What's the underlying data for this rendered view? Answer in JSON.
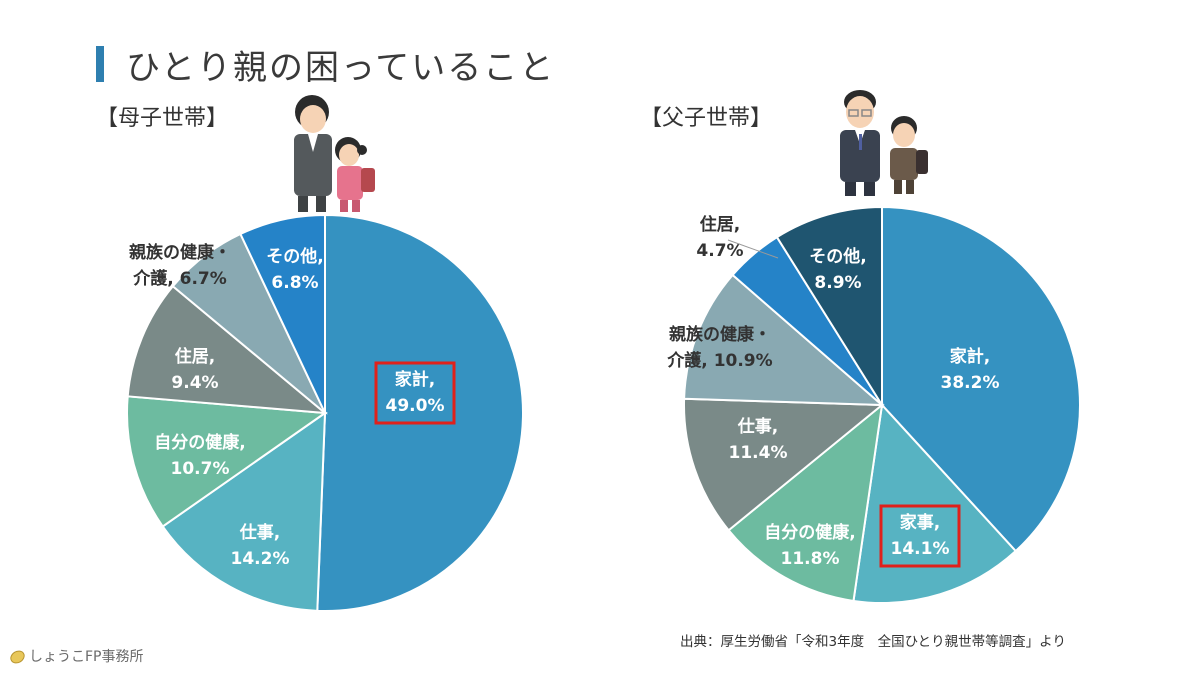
{
  "page": {
    "title": "ひとり親の困っていること",
    "source": "出典：厚生労働省「令和3年度　全国ひとり親世帯等調査」より",
    "brand": "しょうこFP事務所"
  },
  "colors": {
    "title_bar": "#2e7fb0",
    "highlight_box": "#e0201b"
  },
  "chart_data": [
    {
      "type": "pie",
      "title": "【母子世帯】",
      "illustration": "mother-and-daughter-worried-illustration",
      "slices": [
        {
          "label": "家計,",
          "pct": "49.0%",
          "value": 49.0,
          "color": "#3592c1",
          "label_color": "#ffffff",
          "highlight": true
        },
        {
          "label": "仕事,",
          "pct": "14.2%",
          "value": 14.2,
          "color": "#57b3c2",
          "label_color": "#ffffff"
        },
        {
          "label": "自分の健康,",
          "pct": "10.7%",
          "value": 10.7,
          "color": "#6dbba0",
          "label_color": "#ffffff"
        },
        {
          "label": "住居,",
          "pct": "9.4%",
          "value": 9.4,
          "color": "#7a8a88",
          "label_color": "#ffffff"
        },
        {
          "label": "親族の健康・",
          "label2": "介護,",
          "pct": "6.7%",
          "value": 6.7,
          "color": "#89a9b2",
          "label_color": "#333333",
          "outside": true
        },
        {
          "label": "その他,",
          "pct": "6.8%",
          "value": 6.8,
          "color": "#2583c8",
          "label_color": "#ffffff"
        }
      ]
    },
    {
      "type": "pie",
      "title": "【父子世帯】",
      "illustration": "father-and-son-worried-illustration",
      "slices": [
        {
          "label": "家計,",
          "pct": "38.2%",
          "value": 38.2,
          "color": "#3592c1",
          "label_color": "#ffffff"
        },
        {
          "label": "家事,",
          "pct": "14.1%",
          "value": 14.1,
          "color": "#57b3c2",
          "label_color": "#ffffff",
          "highlight": true
        },
        {
          "label": "自分の健康,",
          "pct": "11.8%",
          "value": 11.8,
          "color": "#6dbba0",
          "label_color": "#ffffff"
        },
        {
          "label": "仕事,",
          "pct": "11.4%",
          "value": 11.4,
          "color": "#7a8a88",
          "label_color": "#ffffff"
        },
        {
          "label": "親族の健康・",
          "label2": "介護,",
          "pct": "10.9%",
          "value": 10.9,
          "color": "#89a9b2",
          "label_color": "#333333"
        },
        {
          "label": "住居,",
          "pct": "4.7%",
          "value": 4.7,
          "color": "#2583c8",
          "label_color": "#333333",
          "outside": true
        },
        {
          "label": "その他,",
          "pct": "8.9%",
          "value": 8.9,
          "color": "#1f5570",
          "label_color": "#ffffff"
        }
      ]
    }
  ]
}
